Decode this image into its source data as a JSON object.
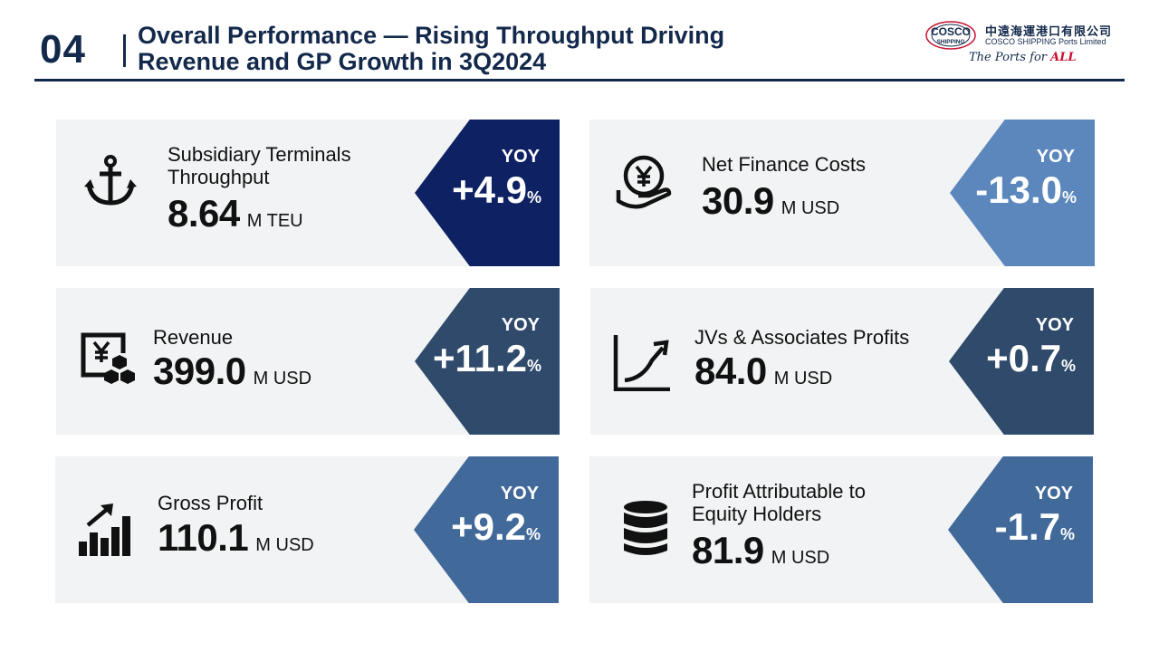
{
  "header": {
    "section_number": "04",
    "title_line1": "Overall Performance — Rising Throughput Driving",
    "title_line2": "Revenue and GP Growth in 3Q2024"
  },
  "logo": {
    "mark_line1": "COSCO",
    "mark_line2": "SHIPPING",
    "company_cn": "中遠海運港口有限公司",
    "company_en": "COSCO SHIPPING Ports Limited",
    "tagline_prefix": "The Ports for ",
    "tagline_emphasis": "ALL"
  },
  "colors": {
    "navy": "#13294b",
    "deep_blue": "#0e2163",
    "light_blue": "#5b87bd",
    "slate_blue": "#2f4a6b",
    "steel_blue": "#41699a",
    "card_bg": "#f1f3f4"
  },
  "metrics": [
    {
      "icon": "anchor-icon",
      "label_line1": "Subsidiary Terminals",
      "label_line2": "Throughput",
      "value": "8.64",
      "unit": "M TEU",
      "yoy_label": "YOY",
      "yoy": "+4.9",
      "pct": "%"
    },
    {
      "icon": "yen-hand-icon",
      "label_line1": "Net Finance Costs",
      "label_line2": "",
      "value": "30.9",
      "unit": "M USD",
      "yoy_label": "YOY",
      "yoy": "-13.0",
      "pct": "%"
    },
    {
      "icon": "yen-boxes-icon",
      "label_line1": "Revenue",
      "label_line2": "",
      "value": "399.0",
      "unit": "M USD",
      "yoy_label": "YOY",
      "yoy": "+11.2",
      "pct": "%"
    },
    {
      "icon": "growth-curve-icon",
      "label_line1": "JVs & Associates Profits",
      "label_line2": "",
      "value": "84.0",
      "unit": "M USD",
      "yoy_label": "YOY",
      "yoy": "+0.7",
      "pct": "%"
    },
    {
      "icon": "bar-chart-arrow-icon",
      "label_line1": "Gross Profit",
      "label_line2": "",
      "value": "110.1",
      "unit": "M USD",
      "yoy_label": "YOY",
      "yoy": "+9.2",
      "pct": "%"
    },
    {
      "icon": "database-icon",
      "label_line1": "Profit Attributable to",
      "label_line2": "Equity Holders",
      "value": "81.9",
      "unit": "M USD",
      "yoy_label": "YOY",
      "yoy": "-1.7",
      "pct": "%"
    }
  ]
}
